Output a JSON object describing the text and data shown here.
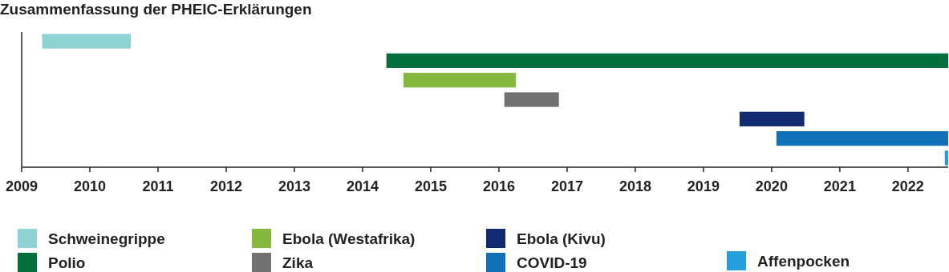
{
  "chart_data": {
    "type": "bar",
    "orientation": "horizontal",
    "title": "Zusammenfassung der PHEIC-Erklärungen",
    "categories": [
      null,
      null,
      null,
      null,
      null,
      null,
      null
    ],
    "series": [
      {
        "name": "Schweinegrippe",
        "color": "#8dd3d3",
        "base": [
          2009.3,
          null,
          null,
          null,
          null,
          null,
          null
        ],
        "values": [
          1.3,
          null,
          null,
          null,
          null,
          null,
          null
        ]
      },
      {
        "name": "Polio",
        "color": "#006f3c",
        "base": [
          null,
          2014.35,
          null,
          null,
          null,
          null,
          null
        ],
        "values": [
          null,
          8.24,
          null,
          null,
          null,
          null,
          null
        ]
      },
      {
        "name": "Ebola (Westafrika)",
        "color": "#84b83f",
        "base": [
          null,
          null,
          2014.6,
          null,
          null,
          null,
          null
        ],
        "values": [
          null,
          null,
          1.65,
          null,
          null,
          null,
          null
        ]
      },
      {
        "name": "Zika",
        "color": "#717171",
        "base": [
          null,
          null,
          null,
          2016.08,
          null,
          null,
          null
        ],
        "values": [
          null,
          null,
          null,
          0.8,
          null,
          null,
          null
        ]
      },
      {
        "name": "Ebola (Kivu)",
        "color": "#112a70",
        "base": [
          null,
          null,
          null,
          null,
          2019.53,
          null,
          null
        ],
        "values": [
          null,
          null,
          null,
          null,
          0.95,
          null,
          null
        ]
      },
      {
        "name": "COVID-19",
        "color": "#1170b8",
        "base": [
          null,
          null,
          null,
          null,
          null,
          2020.07,
          null
        ],
        "values": [
          null,
          null,
          null,
          null,
          null,
          2.52,
          null
        ]
      },
      {
        "name": "Affenpocken",
        "color": "#259fdc",
        "base": [
          null,
          null,
          null,
          null,
          null,
          null,
          2022.54
        ],
        "values": [
          null,
          null,
          null,
          null,
          null,
          null,
          0.05
        ]
      }
    ],
    "xlim": [
      2009,
      2022.59
    ],
    "xticks": [
      2009,
      2010,
      2011,
      2012,
      2013,
      2014,
      2015,
      2016,
      2017,
      2018,
      2019,
      2020,
      2021,
      2022
    ],
    "legend": "bottom"
  }
}
